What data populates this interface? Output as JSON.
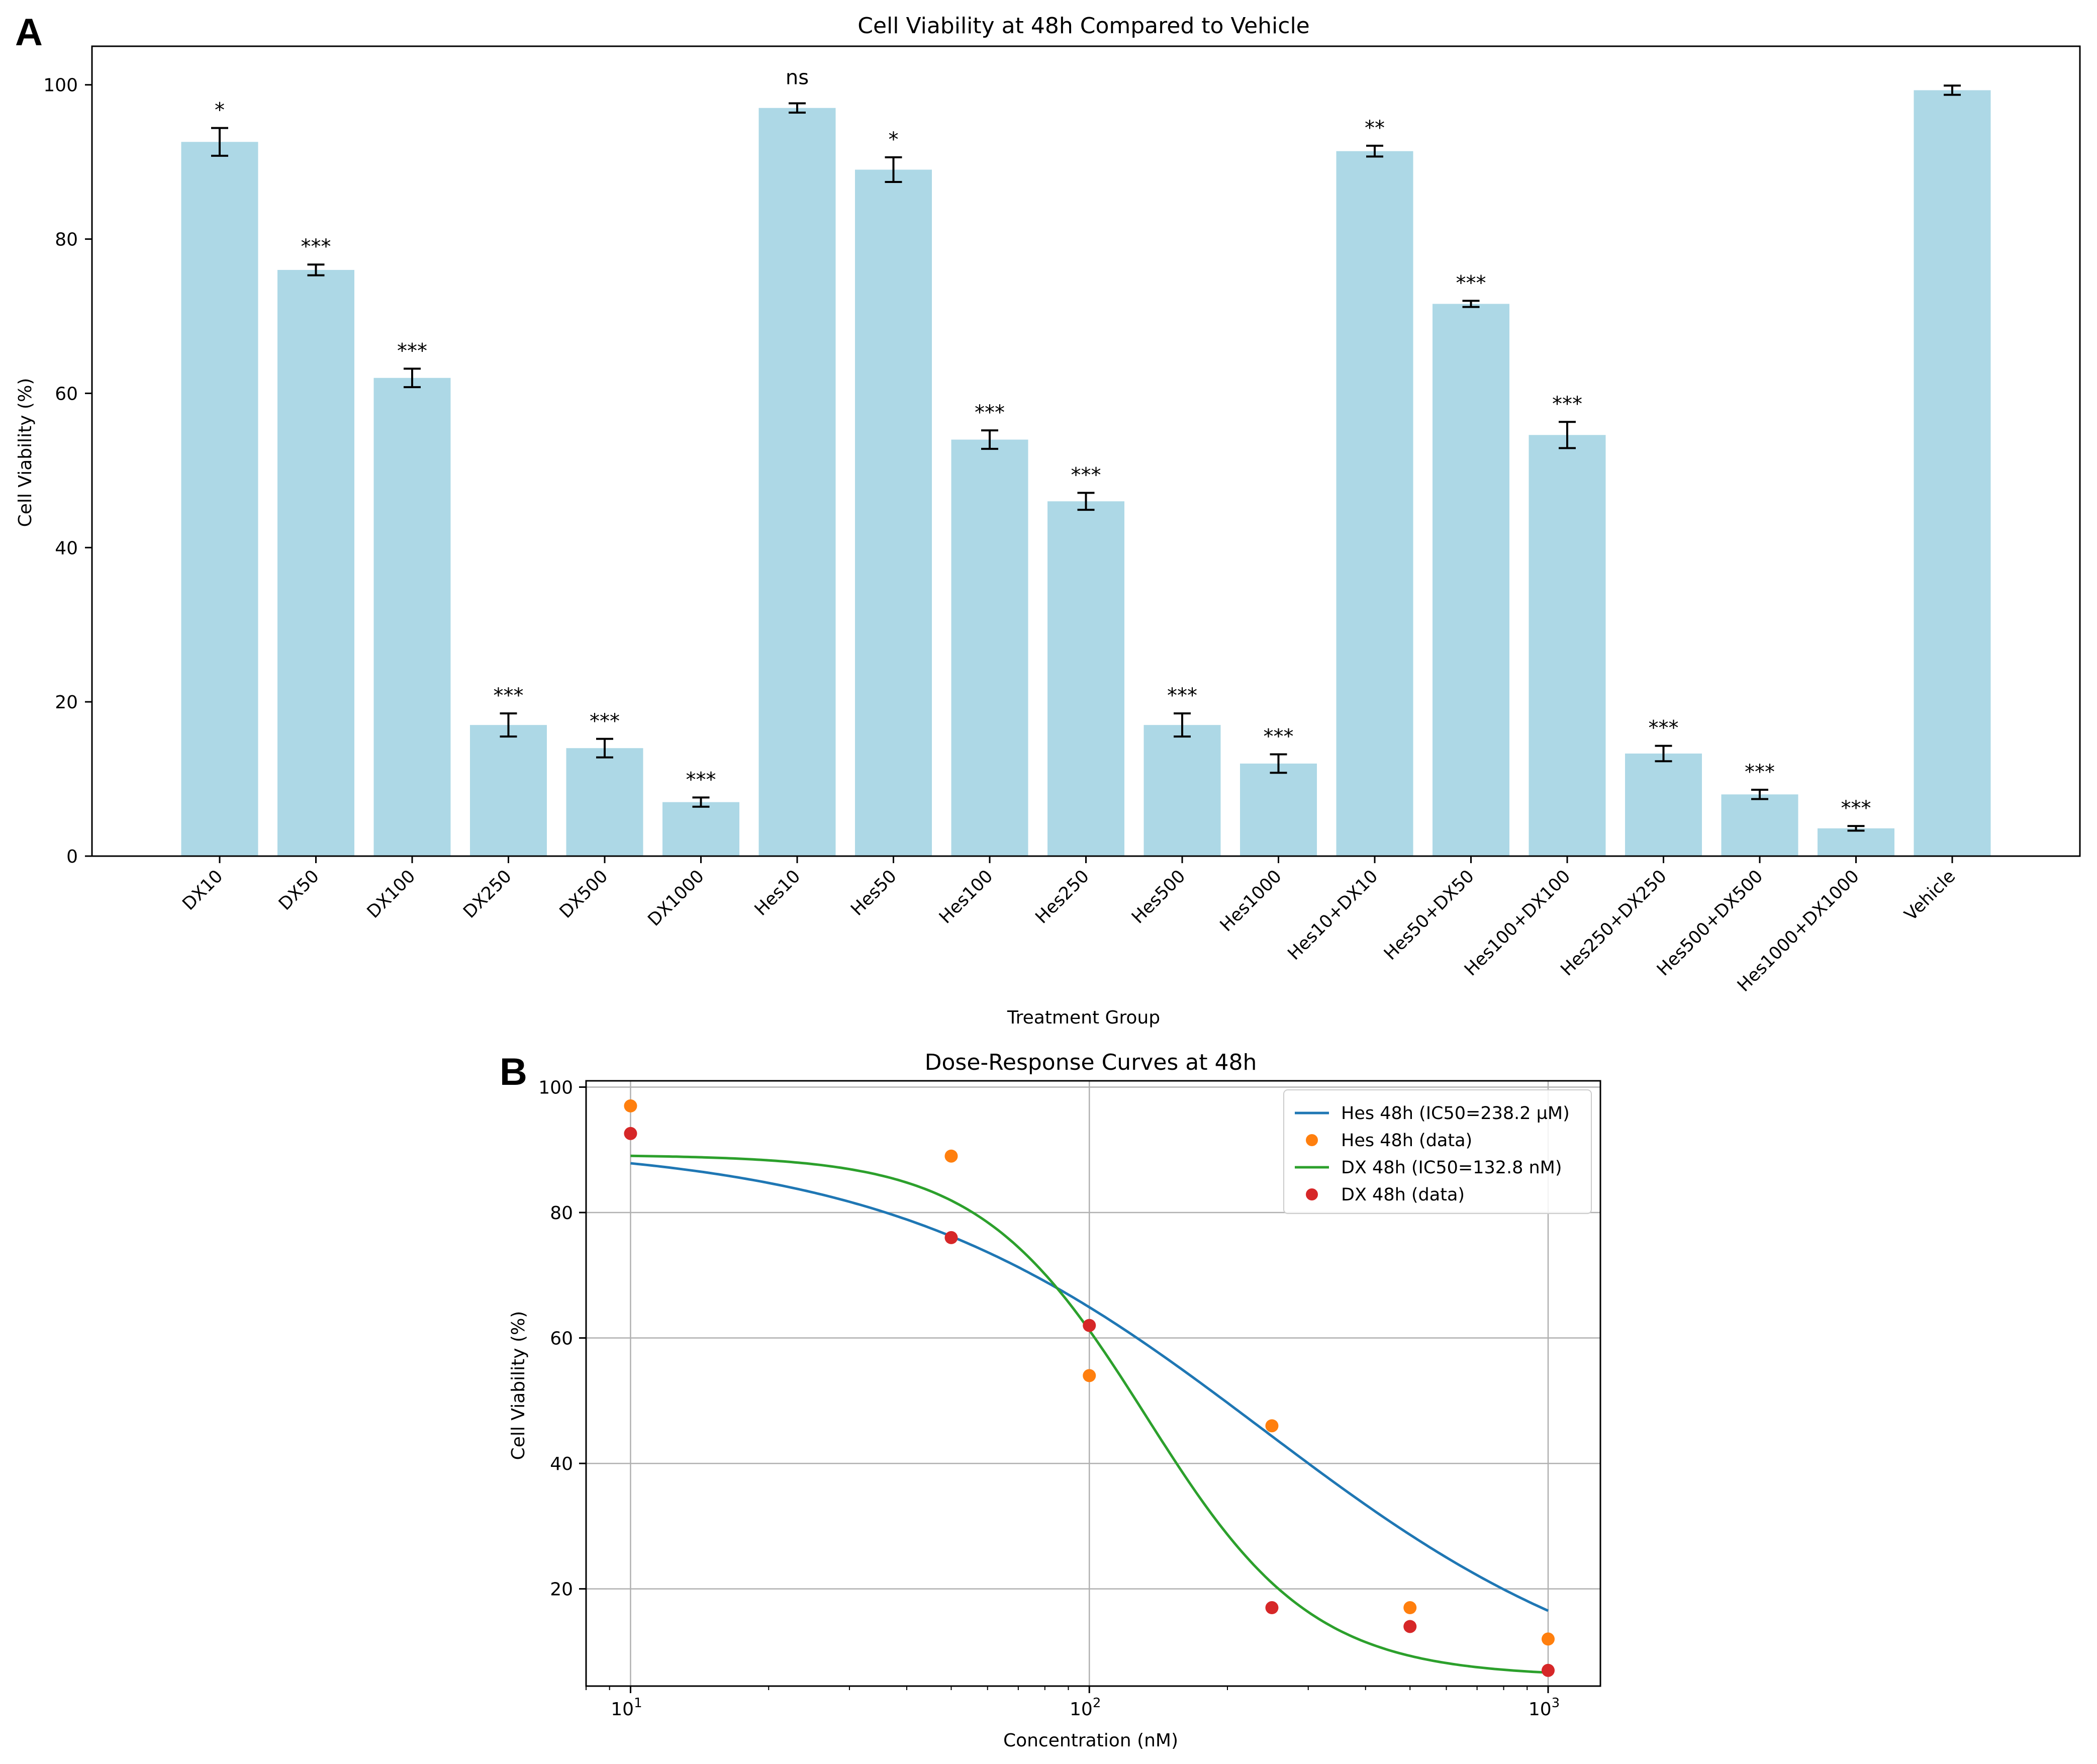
{
  "chart_data": [
    {
      "panel_label": "A",
      "type": "bar",
      "title": "Cell Viability at 48h Compared to Vehicle",
      "xlabel": "Treatment Group",
      "ylabel": "Cell Viability (%)",
      "ylim": [
        0,
        105
      ],
      "yticks": [
        0,
        20,
        40,
        60,
        80,
        100
      ],
      "grid": false,
      "bar_color": "#add8e6",
      "error_color": "#000000",
      "categories": [
        "DX10",
        "DX50",
        "DX100",
        "DX250",
        "DX500",
        "DX1000",
        "Hes10",
        "Hes50",
        "Hes100",
        "Hes250",
        "Hes500",
        "Hes1000",
        "Hes10+DX10",
        "Hes50+DX50",
        "Hes100+DX100",
        "Hes250+DX250",
        "Hes500+DX500",
        "Hes1000+DX1000",
        "Vehicle"
      ],
      "values": [
        92.6,
        76.0,
        62.0,
        17.0,
        14.0,
        7.0,
        97.0,
        89.0,
        54.0,
        46.0,
        17.0,
        12.0,
        91.4,
        71.6,
        54.6,
        13.3,
        8.0,
        3.6,
        99.3
      ],
      "errors": [
        1.8,
        0.7,
        1.2,
        1.5,
        1.2,
        0.6,
        0.6,
        1.6,
        1.2,
        1.1,
        1.5,
        1.2,
        0.7,
        0.4,
        1.7,
        1.0,
        0.6,
        0.3,
        0.6
      ],
      "significance": [
        "*",
        "***",
        "***",
        "***",
        "***",
        "***",
        "ns",
        "*",
        "***",
        "***",
        "***",
        "***",
        "**",
        "***",
        "***",
        "***",
        "***",
        "***",
        ""
      ]
    },
    {
      "panel_label": "B",
      "type": "line",
      "title": "Dose-Response Curves at 48h",
      "xlabel": "Concentration (nM)",
      "ylabel": "Cell Viability (%)",
      "xscale": "log",
      "xlim": [
        8,
        1300
      ],
      "ylim": [
        4.5,
        101
      ],
      "xticks": [
        10,
        100,
        1000
      ],
      "xtick_labels": [
        {
          "base": "10",
          "exp": "1"
        },
        {
          "base": "10",
          "exp": "2"
        },
        {
          "base": "10",
          "exp": "3"
        }
      ],
      "yticks": [
        20,
        40,
        60,
        80,
        100
      ],
      "grid": true,
      "legend_position": "top-right",
      "series": [
        {
          "name": "Hes 48h (IC50=238.2 µM)",
          "kind": "curve",
          "color": "#1f77b4",
          "model": {
            "bottom": 0.0,
            "top": 91.0,
            "ic50": 238.2,
            "hill": 1.05
          }
        },
        {
          "name": "Hes 48h (data)",
          "kind": "points",
          "color": "#ff7f0e",
          "x": [
            10,
            50,
            100,
            250,
            500,
            1000
          ],
          "y": [
            97,
            89,
            54,
            46,
            17,
            12
          ]
        },
        {
          "name": "DX 48h (IC50=132.8 nM)",
          "kind": "curve",
          "color": "#2ca02c",
          "model": {
            "bottom": 6.0,
            "top": 89.2,
            "ic50": 132.8,
            "hill": 2.4
          }
        },
        {
          "name": "DX 48h (data)",
          "kind": "points",
          "color": "#d62728",
          "x": [
            10,
            50,
            100,
            250,
            500,
            1000
          ],
          "y": [
            92.6,
            76,
            62,
            17,
            14,
            7
          ]
        }
      ]
    }
  ]
}
